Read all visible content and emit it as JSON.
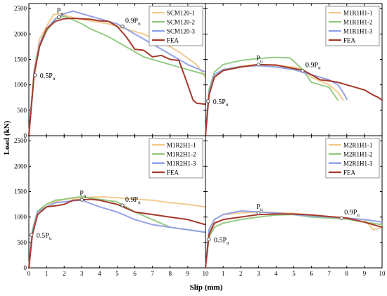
{
  "figure": {
    "y_axis_label": "Load (kN)",
    "x_axis_label": "Slip (mm)",
    "x_ticks": [
      0,
      1,
      2,
      3,
      4,
      5,
      6,
      7,
      8,
      9,
      10
    ],
    "y_ticks": [
      0,
      500,
      1000,
      1500,
      2000,
      2500
    ]
  },
  "colors": {
    "series_1": "#f2c98a",
    "series_2": "#8fc97e",
    "series_3": "#8f9fe6",
    "fea": "#a53a2a",
    "marker_edge": "#555555"
  },
  "chart_data": [
    {
      "type": "line",
      "xlabel": "Slip (mm)",
      "ylabel": "Load (kN)",
      "xlim": [
        0,
        10
      ],
      "ylim": [
        0,
        2600
      ],
      "grid": false,
      "legend_position": "top-right",
      "series": [
        {
          "name": "SCM120-1",
          "x": [
            0,
            0.3,
            0.6,
            1.0,
            1.4,
            1.8,
            2.3,
            2.8,
            3.5,
            4.5,
            5.5,
            6.5,
            7.5,
            8.5,
            9.5,
            10
          ],
          "y": [
            0,
            1300,
            1900,
            2150,
            2380,
            2400,
            2340,
            2300,
            2260,
            2200,
            2100,
            2000,
            1850,
            1650,
            1400,
            1150
          ]
        },
        {
          "name": "SCM120-2",
          "x": [
            0,
            0.3,
            0.6,
            1.0,
            1.5,
            2.0,
            2.5,
            3.0,
            3.5,
            4.5,
            5.5,
            6.5,
            7.5,
            8.5,
            9.5,
            10
          ],
          "y": [
            0,
            1200,
            1750,
            2050,
            2300,
            2350,
            2280,
            2200,
            2100,
            1950,
            1750,
            1550,
            1450,
            1350,
            1250,
            1200
          ]
        },
        {
          "name": "SCM120-3",
          "x": [
            0,
            0.3,
            0.6,
            1.0,
            1.5,
            2.0,
            2.5,
            3.0,
            4.0,
            5.0,
            6.0,
            7.0,
            8.0,
            9.0,
            10
          ],
          "y": [
            0,
            1250,
            1800,
            2100,
            2300,
            2400,
            2450,
            2400,
            2300,
            2200,
            2000,
            1800,
            1600,
            1400,
            1250
          ]
        },
        {
          "name": "FEA",
          "x": [
            0,
            0.3,
            0.6,
            1.0,
            1.5,
            2.0,
            2.5,
            3.0,
            3.5,
            4.0,
            4.5,
            5.0,
            5.5,
            6.0,
            6.5,
            7.0,
            7.5,
            8.0,
            8.5,
            9.0,
            9.3,
            9.5,
            10
          ],
          "y": [
            0,
            1200,
            1750,
            2100,
            2250,
            2300,
            2310,
            2300,
            2290,
            2260,
            2250,
            2150,
            1950,
            1700,
            1680,
            1550,
            1580,
            1500,
            1480,
            1000,
            700,
            640,
            620
          ]
        }
      ],
      "annotations": [
        {
          "text": "P",
          "sub": "u",
          "x": 1.7,
          "y": 2330
        },
        {
          "text": "0.9P",
          "sub": "u",
          "x": 5.3,
          "y": 2150
        },
        {
          "text": "0.5P",
          "sub": "u",
          "x": 0.35,
          "y": 1190
        }
      ]
    },
    {
      "type": "line",
      "xlabel": "Slip (mm)",
      "ylabel": "Load (kN)",
      "xlim": [
        0,
        10
      ],
      "ylim": [
        0,
        2600
      ],
      "grid": false,
      "legend_position": "top-right",
      "series": [
        {
          "name": "M1R1H1-1",
          "x": [
            0,
            0.2,
            0.5,
            1.0,
            2.0,
            3.0,
            4.0,
            5.0,
            5.5,
            6.0,
            7.0,
            7.5,
            7.8
          ],
          "y": [
            0,
            800,
            1150,
            1300,
            1370,
            1400,
            1380,
            1350,
            1300,
            1150,
            1000,
            850,
            700
          ]
        },
        {
          "name": "M1R1H1-2",
          "x": [
            0,
            0.2,
            0.5,
            1.0,
            2.0,
            3.0,
            4.0,
            4.8,
            5.5,
            6.0,
            7.0,
            7.5
          ],
          "y": [
            0,
            900,
            1250,
            1400,
            1480,
            1520,
            1540,
            1530,
            1300,
            1050,
            950,
            700
          ]
        },
        {
          "name": "M1R1H1-3",
          "x": [
            0,
            0.2,
            0.5,
            1.0,
            2.0,
            3.0,
            4.0,
            5.0,
            6.0,
            7.0,
            7.5,
            7.8,
            8.0
          ],
          "y": [
            0,
            850,
            1200,
            1300,
            1360,
            1380,
            1350,
            1300,
            1200,
            1100,
            1000,
            850,
            720
          ]
        },
        {
          "name": "FEA",
          "x": [
            0,
            0.2,
            0.5,
            1.0,
            2.0,
            3.0,
            4.0,
            5.0,
            5.5,
            6.0,
            6.5,
            7.0,
            7.5,
            8.0,
            8.5,
            9.0,
            9.5,
            9.8,
            10
          ],
          "y": [
            0,
            800,
            1150,
            1280,
            1350,
            1400,
            1390,
            1320,
            1290,
            1200,
            1100,
            1080,
            1050,
            1000,
            950,
            900,
            800,
            750,
            700
          ]
        }
      ],
      "annotations": [
        {
          "text": "P",
          "sub": "u",
          "x": 3.0,
          "y": 1400
        },
        {
          "text": "0.9P",
          "sub": "u",
          "x": 5.5,
          "y": 1280
        },
        {
          "text": "0.5P",
          "sub": "u",
          "x": 0.15,
          "y": 680
        }
      ]
    },
    {
      "type": "line",
      "xlabel": "Slip (mm)",
      "ylabel": "Load (kN)",
      "xlim": [
        0,
        10
      ],
      "ylim": [
        0,
        2600
      ],
      "grid": false,
      "legend_position": "top-right",
      "series": [
        {
          "name": "M1R2H1-1",
          "x": [
            0,
            0.2,
            0.5,
            1.0,
            1.5,
            2.0,
            3.0,
            4.0,
            5.0,
            6.0,
            7.0,
            8.0,
            9.0,
            10
          ],
          "y": [
            0,
            700,
            1100,
            1250,
            1300,
            1350,
            1380,
            1400,
            1380,
            1350,
            1330,
            1280,
            1250,
            1200
          ]
        },
        {
          "name": "M1R2H1-2",
          "x": [
            0,
            0.2,
            0.5,
            1.0,
            1.5,
            2.0,
            2.5,
            3.0,
            4.0,
            5.0,
            6.0,
            7.0,
            8.0,
            9.0,
            10
          ],
          "y": [
            0,
            750,
            1120,
            1250,
            1330,
            1350,
            1380,
            1400,
            1350,
            1300,
            1100,
            950,
            800,
            750,
            700
          ]
        },
        {
          "name": "M1R2H1-3",
          "x": [
            0,
            0.2,
            0.5,
            1.0,
            1.5,
            2.0,
            2.5,
            3.0,
            4.0,
            5.0,
            6.0,
            7.0,
            8.0,
            9.0,
            10
          ],
          "y": [
            0,
            700,
            1100,
            1200,
            1280,
            1300,
            1320,
            1330,
            1200,
            1100,
            950,
            850,
            800,
            750,
            700
          ]
        },
        {
          "name": "FEA",
          "x": [
            0,
            0.2,
            0.5,
            1.0,
            1.5,
            2.0,
            2.5,
            3.0,
            3.5,
            4.0,
            5.0,
            6.0,
            7.0,
            8.0,
            9.0,
            9.5,
            10
          ],
          "y": [
            0,
            650,
            1050,
            1200,
            1220,
            1250,
            1330,
            1340,
            1350,
            1330,
            1250,
            1100,
            1050,
            1000,
            950,
            900,
            850
          ]
        }
      ],
      "annotations": [
        {
          "text": "P",
          "sub": "u",
          "x": 3.0,
          "y": 1340
        },
        {
          "text": "0.9P",
          "sub": "u",
          "x": 5.3,
          "y": 1230
        },
        {
          "text": "0.5P",
          "sub": "u",
          "x": 0.15,
          "y": 650
        }
      ]
    },
    {
      "type": "line",
      "xlabel": "Slip (mm)",
      "ylabel": "Load (kN)",
      "xlim": [
        0,
        10
      ],
      "ylim": [
        0,
        2600
      ],
      "grid": false,
      "legend_position": "top-right",
      "series": [
        {
          "name": "M2R1H1-1",
          "x": [
            0,
            0.2,
            0.5,
            1.0,
            2.0,
            3.0,
            4.0,
            5.0,
            6.0,
            7.0,
            8.0,
            9.0,
            9.5,
            10
          ],
          "y": [
            0,
            700,
            950,
            1050,
            1080,
            1100,
            1090,
            1070,
            1040,
            1000,
            970,
            950,
            750,
            800
          ]
        },
        {
          "name": "M2R1H1-2",
          "x": [
            0,
            0.2,
            0.5,
            1.0,
            2.0,
            3.0,
            4.0,
            5.0,
            6.0,
            7.0,
            8.0,
            9.0,
            10
          ],
          "y": [
            0,
            600,
            800,
            880,
            950,
            1000,
            1040,
            1050,
            1000,
            980,
            960,
            900,
            850
          ]
        },
        {
          "name": "M2R1H1-3",
          "x": [
            0,
            0.2,
            0.5,
            1.0,
            2.0,
            3.0,
            4.0,
            5.0,
            6.0,
            7.0,
            8.0,
            9.0,
            10
          ],
          "y": [
            0,
            750,
            950,
            1050,
            1120,
            1100,
            1080,
            1050,
            1020,
            1000,
            980,
            950,
            900
          ]
        },
        {
          "name": "FEA",
          "x": [
            0,
            0.2,
            0.5,
            1.0,
            2.0,
            3.0,
            4.0,
            5.0,
            6.0,
            7.0,
            8.0,
            9.0,
            10
          ],
          "y": [
            0,
            650,
            880,
            950,
            1000,
            1050,
            1060,
            1060,
            1040,
            1010,
            980,
            900,
            800
          ]
        }
      ],
      "annotations": [
        {
          "text": "P",
          "sub": "u",
          "x": 3.0,
          "y": 1080
        },
        {
          "text": "0.9P",
          "sub": "u",
          "x": 7.7,
          "y": 980
        },
        {
          "text": "0.5P",
          "sub": "u",
          "x": 0.2,
          "y": 560
        }
      ]
    }
  ]
}
